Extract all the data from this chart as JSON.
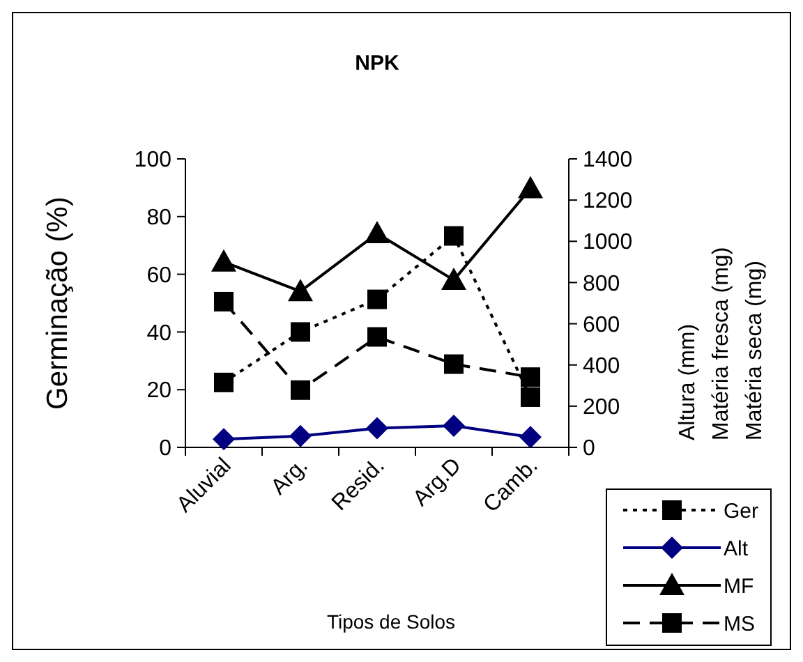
{
  "chart_data": {
    "type": "line",
    "title": "NPK",
    "xlabel": "Tipos de Solos",
    "ylabel": "Germinação (%)",
    "y2label": "Altura (mm)\nMatéria fresca (mg)\nMatéria seca (mg)",
    "categories": [
      "Aluvial",
      "Arg.",
      "Resid.",
      "Arg.D",
      "Camb."
    ],
    "ylim": [
      0,
      100
    ],
    "yticks": [
      0,
      20,
      40,
      60,
      80,
      100
    ],
    "y2lim": [
      0,
      1400
    ],
    "y2ticks": [
      0,
      200,
      400,
      600,
      800,
      1000,
      1200,
      1400
    ],
    "legend": "bottom right",
    "grid": false,
    "series": [
      {
        "name": "Ger",
        "color": "#000000",
        "values": [
          22.5,
          40,
          51.3,
          73.3,
          17.4
        ],
        "marker": "square",
        "line_style": "dotted"
      },
      {
        "name": "Alt",
        "color": "#000080",
        "values": [
          40,
          55,
          93,
          105,
          50
        ],
        "marker": "diamond",
        "line_style": "solid",
        "axis": "y2"
      },
      {
        "name": "MF",
        "color": "#000000",
        "values": [
          900,
          757,
          1038,
          812,
          1256
        ],
        "marker": "triangle",
        "line_style": "solid",
        "axis": "y2"
      },
      {
        "name": "MS",
        "color": "#000000",
        "values": [
          707,
          278,
          536,
          404,
          341
        ],
        "marker": "square",
        "line_style": "dashed",
        "axis": "y2"
      }
    ]
  }
}
